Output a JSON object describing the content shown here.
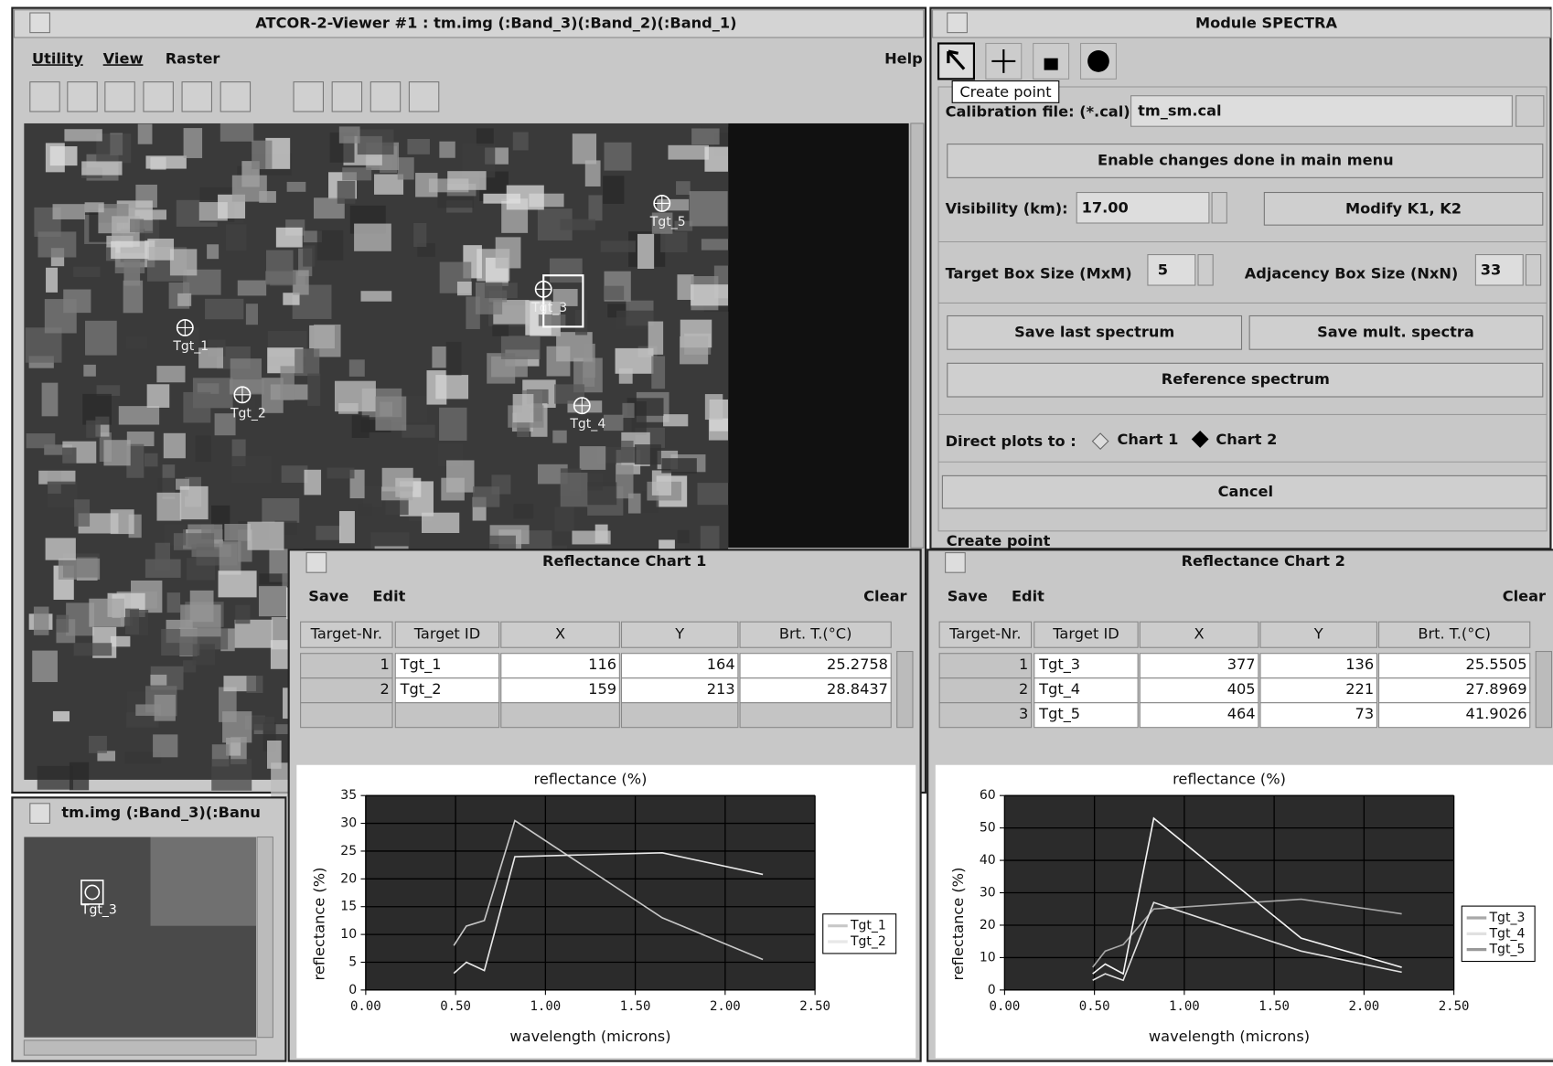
{
  "viewer": {
    "title": "ATCOR-2-Viewer #1 : tm.img (:Band_3)(:Band_2)(:Band_1)",
    "menu": [
      "Utility",
      "View",
      "Raster"
    ],
    "help": "Help",
    "targets": [
      "Tgt_1",
      "Tgt_2",
      "Tgt_3",
      "Tgt_4",
      "Tgt_5"
    ]
  },
  "zoom": {
    "title": "tm.img (:Band_3)(:Banu",
    "target": "Tgt_3"
  },
  "spectra": {
    "title": "Module SPECTRA",
    "tooltip": "Create point",
    "calibration_label": "Calibration file: (*.cal)",
    "calibration_value": "tm_sm.cal",
    "enable_button": "Enable changes done in main menu",
    "visibility_label": "Visibility (km):",
    "visibility_value": "17.00",
    "modify_button": "Modify K1, K2",
    "target_box_label": "Target Box Size (MxM)",
    "target_box_value": "5",
    "adjacency_label": "Adjacency Box Size (NxN)",
    "adjacency_value": "33",
    "save_last": "Save last spectrum",
    "save_mult": "Save mult. spectra",
    "reference": "Reference spectrum",
    "direct_label": "Direct plots to :",
    "radio": [
      "Chart 1",
      "Chart 2"
    ],
    "cancel": "Cancel",
    "status": "Create point"
  },
  "charts": [
    {
      "title": "Reflectance Chart 1",
      "menu": [
        "Save",
        "Edit"
      ],
      "clear": "Clear",
      "columns": [
        "Target-Nr.",
        "Target ID",
        "X",
        "Y",
        "Brt. T.(°C)"
      ],
      "rows": [
        [
          "1",
          "Tgt_1",
          "116",
          "164",
          "25.2758"
        ],
        [
          "2",
          "Tgt_2",
          "159",
          "213",
          "28.8437"
        ]
      ],
      "chart_data": {
        "type": "line",
        "title": "reflectance (%)",
        "x_label": "wavelength (microns)",
        "y_label": "reflectance (%)",
        "xlim": [
          0,
          2.5
        ],
        "ylim": [
          0,
          35
        ],
        "xticks": [
          {
            "value": 0,
            "label": "0.00"
          },
          {
            "value": 0.5,
            "label": "0.50"
          },
          {
            "value": 1,
            "label": "1.00"
          },
          {
            "value": 1.5,
            "label": "1.50"
          },
          {
            "value": 2,
            "label": "2.00"
          },
          {
            "value": 2.5,
            "label": "2.50"
          }
        ],
        "yticks": [
          0,
          5,
          10,
          15,
          20,
          25,
          30,
          35
        ],
        "grid": true,
        "x": [
          0.49,
          0.56,
          0.66,
          0.83,
          1.65,
          2.21
        ],
        "series": [
          {
            "name": "Tgt_1",
            "color": "#c8c8c8",
            "values": [
              8,
              11.5,
              12.5,
              30.5,
              13,
              5.5
            ]
          },
          {
            "name": "Tgt_2",
            "color": "#e8e8e8",
            "values": [
              3,
              5,
              3.5,
              24,
              24.7,
              20.8
            ]
          }
        ]
      }
    },
    {
      "title": "Reflectance Chart 2",
      "menu": [
        "Save",
        "Edit"
      ],
      "clear": "Clear",
      "columns": [
        "Target-Nr.",
        "Target ID",
        "X",
        "Y",
        "Brt. T.(°C)"
      ],
      "rows": [
        [
          "1",
          "Tgt_3",
          "377",
          "136",
          "25.5505"
        ],
        [
          "2",
          "Tgt_4",
          "405",
          "221",
          "27.8969"
        ],
        [
          "3",
          "Tgt_5",
          "464",
          "73",
          "41.9026"
        ]
      ],
      "chart_data": {
        "type": "line",
        "title": "reflectance (%)",
        "x_label": "wavelength (microns)",
        "y_label": "reflectance (%)",
        "xlim": [
          0,
          2.5
        ],
        "ylim": [
          0,
          60
        ],
        "xticks": [
          {
            "value": 0,
            "label": "0.00"
          },
          {
            "value": 0.5,
            "label": "0.50"
          },
          {
            "value": 1,
            "label": "1.00"
          },
          {
            "value": 1.5,
            "label": "1.50"
          },
          {
            "value": 2,
            "label": "2.00"
          },
          {
            "value": 2.5,
            "label": "2.50"
          }
        ],
        "yticks": [
          0,
          10,
          20,
          30,
          40,
          50,
          60
        ],
        "grid": true,
        "x": [
          0.49,
          0.56,
          0.66,
          0.83,
          1.65,
          2.21
        ],
        "series": [
          {
            "name": "Tgt_3",
            "color": "#a8a8a8",
            "values": [
              7,
              12,
              14,
              25,
              28,
              23.5
            ]
          },
          {
            "name": "Tgt_4",
            "color": "#e0e0e0",
            "values": [
              3,
              5,
              3,
              27,
              12,
              5.5
            ]
          },
          {
            "name": "Tgt_5",
            "color": "#f4f4f4",
            "values": [
              5,
              8,
              5,
              53,
              16,
              7
            ]
          }
        ]
      }
    }
  ]
}
